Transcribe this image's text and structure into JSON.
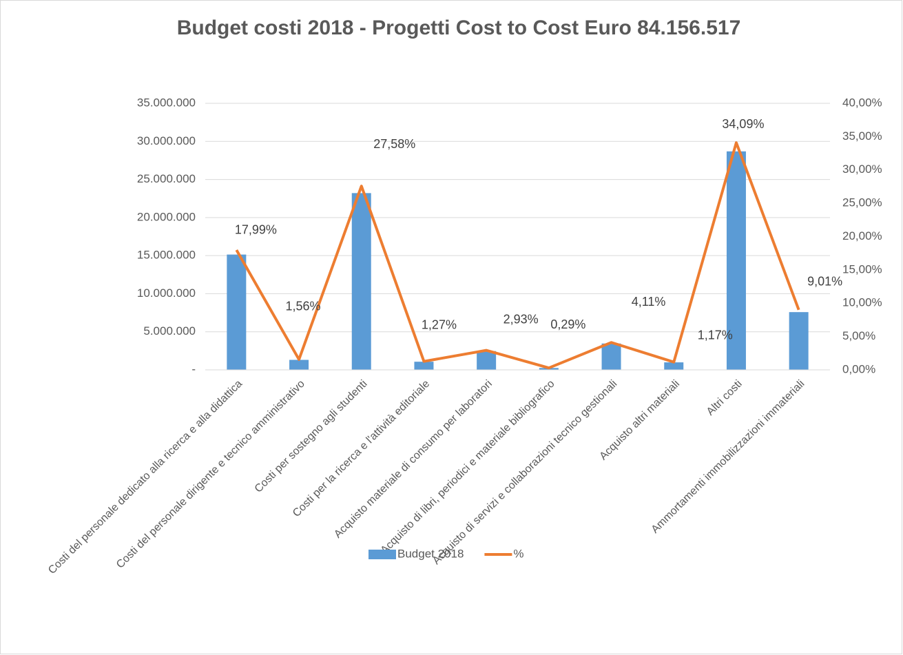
{
  "chart_data": {
    "type": "bar+line",
    "title": "Budget costi 2018  -  Progetti Cost to Cost  Euro 84.156.517",
    "categories": [
      "Costi del personale dedicato alla ricerca e alla didattica",
      "Costi del personale dirigente e tecnico amministrativo",
      "Costi per sostegno agli studenti",
      "Costi per la ricerca e l'attività editoriale",
      "Acquisto materiale di consumo per laboratori",
      "Acquisto di libri, periodici e materiale bibliografico",
      "Acquisto di servizi e collaborazioni tecnico gestionali",
      "Acquisto altri materiali",
      "Altri costi",
      "Ammortamenti immobilizzazioni immateriali"
    ],
    "series": [
      {
        "name": "Budget 2018",
        "type": "bar",
        "color": "#5b9bd5",
        "axis": "y",
        "values": [
          15140000,
          1313000,
          23210000,
          1069000,
          2466000,
          244000,
          3459000,
          985000,
          28690000,
          7583000
        ]
      },
      {
        "name": "%",
        "type": "line",
        "color": "#ed7d31",
        "axis": "y2",
        "values": [
          17.99,
          1.56,
          27.58,
          1.27,
          2.93,
          0.29,
          4.11,
          1.17,
          34.09,
          9.01
        ],
        "value_labels": [
          "17,99%",
          "1,56%",
          "27,58%",
          "1,27%",
          "2,93%",
          "0,29%",
          "4,11%",
          "1,17%",
          "34,09%",
          "9,01%"
        ]
      }
    ],
    "ylim": [
      0,
      35000000
    ],
    "yticks": [
      {
        "value": 0,
        "label": "-"
      },
      {
        "value": 5000000,
        "label": "5.000.000"
      },
      {
        "value": 10000000,
        "label": "10.000.000"
      },
      {
        "value": 15000000,
        "label": "15.000.000"
      },
      {
        "value": 20000000,
        "label": "20.000.000"
      },
      {
        "value": 25000000,
        "label": "25.000.000"
      },
      {
        "value": 30000000,
        "label": "30.000.000"
      },
      {
        "value": 35000000,
        "label": "35.000.000"
      }
    ],
    "y2lim": [
      0,
      40
    ],
    "y2ticks": [
      {
        "value": 0,
        "label": "0,00%"
      },
      {
        "value": 5,
        "label": "5,00%"
      },
      {
        "value": 10,
        "label": "10,00%"
      },
      {
        "value": 15,
        "label": "15,00%"
      },
      {
        "value": 20,
        "label": "20,00%"
      },
      {
        "value": 25,
        "label": "25,00%"
      },
      {
        "value": 30,
        "label": "30,00%"
      },
      {
        "value": 35,
        "label": "35,00%"
      },
      {
        "value": 40,
        "label": "40,00%"
      }
    ],
    "grid": true,
    "legend": "bottom"
  }
}
